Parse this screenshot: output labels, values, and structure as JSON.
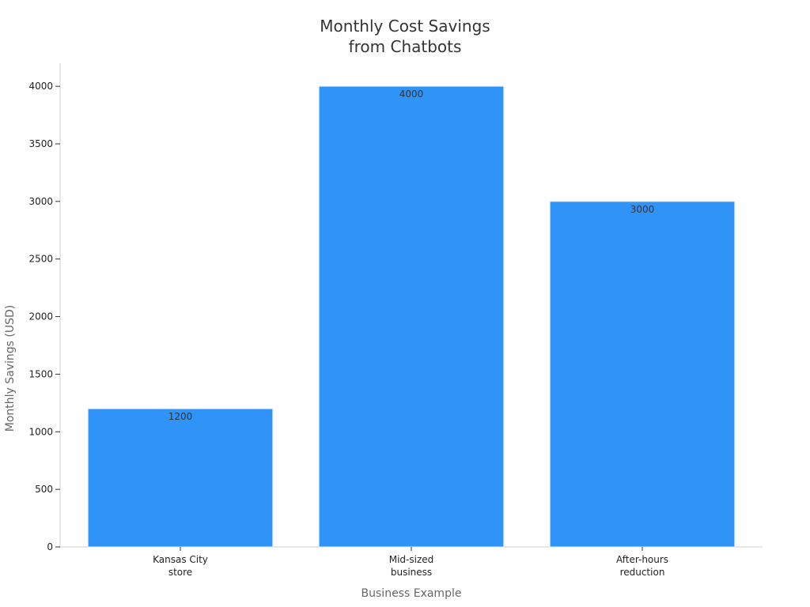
{
  "chart_data": {
    "type": "bar",
    "title": [
      "Monthly Cost Savings",
      "from Chatbots"
    ],
    "xlabel": "Business Example",
    "ylabel": "Monthly Savings (USD)",
    "categories": [
      [
        "Kansas City",
        "store"
      ],
      [
        "Mid-sized",
        "business"
      ],
      [
        "After-hours",
        "reduction"
      ]
    ],
    "values": [
      1200,
      4000,
      3000
    ],
    "ylim": [
      0,
      4200
    ],
    "yticks": [
      0,
      500,
      1000,
      1500,
      2000,
      2500,
      3000,
      3500,
      4000
    ],
    "grid": false,
    "legend": "none",
    "colors": {
      "bar": "#2f93f8",
      "bar_stroke": "#d9ecff",
      "axis": "#cccccc",
      "tick": "#333333"
    }
  }
}
